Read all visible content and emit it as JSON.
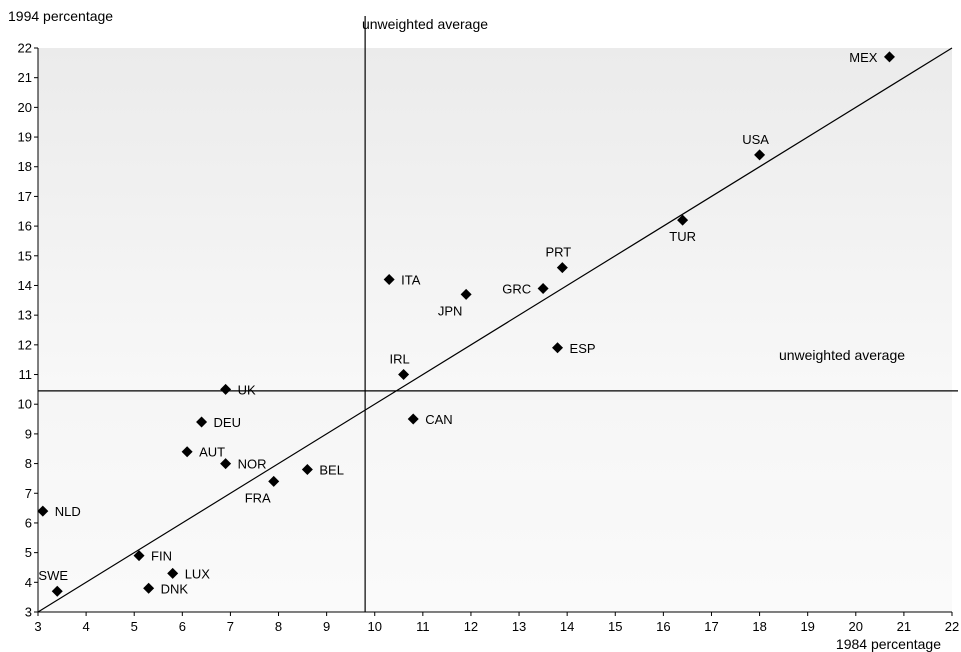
{
  "chart_data": {
    "type": "scatter",
    "title": "",
    "xlabel": "1984 percentage",
    "ylabel": "1994 percentage",
    "xlim": [
      3,
      22
    ],
    "ylim": [
      3,
      22
    ],
    "x_ticks": [
      "3",
      "4",
      "5",
      "6",
      "7",
      "8",
      "9",
      "10",
      "11",
      "12",
      "13",
      "14",
      "15",
      "16",
      "17",
      "18",
      "19",
      "20",
      "21",
      "22"
    ],
    "y_ticks": [
      "3",
      "4",
      "5",
      "6",
      "7",
      "8",
      "9",
      "10",
      "11",
      "12",
      "13",
      "14",
      "15",
      "16",
      "17",
      "18",
      "19",
      "20",
      "21",
      "22"
    ],
    "grid": false,
    "points": [
      {
        "label": "MEX",
        "x": 20.7,
        "y": 21.7
      },
      {
        "label": "USA",
        "x": 18.0,
        "y": 18.4
      },
      {
        "label": "TUR",
        "x": 16.4,
        "y": 16.2
      },
      {
        "label": "PRT",
        "x": 13.9,
        "y": 14.6
      },
      {
        "label": "GRC",
        "x": 13.5,
        "y": 13.9
      },
      {
        "label": "ESP",
        "x": 13.8,
        "y": 11.9
      },
      {
        "label": "JPN",
        "x": 11.9,
        "y": 13.7
      },
      {
        "label": "ITA",
        "x": 10.3,
        "y": 14.2
      },
      {
        "label": "IRL",
        "x": 10.6,
        "y": 11.0
      },
      {
        "label": "CAN",
        "x": 10.8,
        "y": 9.5
      },
      {
        "label": "UK",
        "x": 6.9,
        "y": 10.5
      },
      {
        "label": "DEU",
        "x": 6.4,
        "y": 9.4
      },
      {
        "label": "AUT",
        "x": 6.1,
        "y": 8.4
      },
      {
        "label": "NOR",
        "x": 6.9,
        "y": 8.0
      },
      {
        "label": "BEL",
        "x": 8.6,
        "y": 7.8
      },
      {
        "label": "FRA",
        "x": 7.9,
        "y": 7.4
      },
      {
        "label": "NLD",
        "x": 3.1,
        "y": 6.4
      },
      {
        "label": "FIN",
        "x": 5.1,
        "y": 4.9
      },
      {
        "label": "LUX",
        "x": 5.8,
        "y": 4.3
      },
      {
        "label": "DNK",
        "x": 5.3,
        "y": 3.8
      },
      {
        "label": "SWE",
        "x": 3.4,
        "y": 3.7
      }
    ],
    "label_side": {
      "MEX": "left",
      "USA": "above",
      "TUR": "below",
      "PRT": "above",
      "GRC": "left",
      "ESP": "right",
      "JPN": "below-left",
      "ITA": "right",
      "IRL": "above",
      "CAN": "right",
      "UK": "right",
      "DEU": "right",
      "AUT": "right",
      "NOR": "right",
      "BEL": "right",
      "FRA": "below-left",
      "NLD": "right",
      "FIN": "right",
      "LUX": "right",
      "DNK": "right",
      "SWE": "above"
    },
    "reference_lines": {
      "vertical": {
        "x": 9.8,
        "label": "unweighted average"
      },
      "horizontal": {
        "y": 10.45,
        "label": "unweighted average"
      },
      "diagonal": {
        "from": [
          3,
          3
        ],
        "to": [
          22,
          22
        ]
      }
    },
    "colors": {
      "upper_fill": "#f0f0f0",
      "lower_fill": "#f7f7f7",
      "marker": "#000000",
      "line": "#000000"
    }
  }
}
